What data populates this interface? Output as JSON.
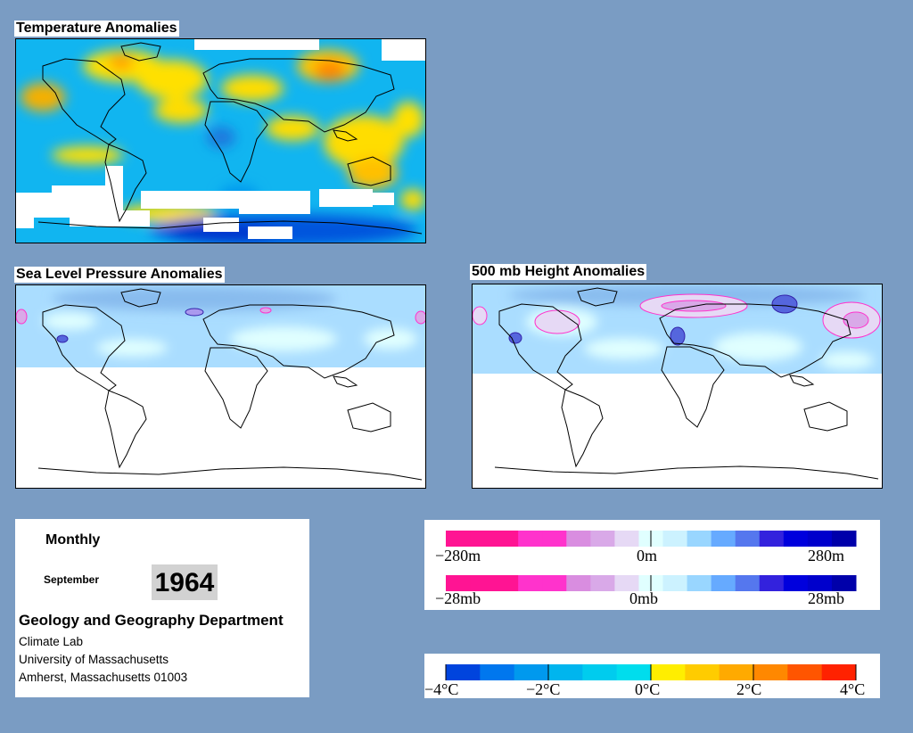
{
  "panels": {
    "temperature": {
      "title": "Temperature Anomalies"
    },
    "slp": {
      "title": "Sea Level Pressure Anomalies"
    },
    "height": {
      "title": "500 mb Height Anomalies"
    }
  },
  "info": {
    "period": "Monthly",
    "month": "September",
    "year": "1964",
    "department": "Geology and Geography Department",
    "address_lines": [
      "Climate Lab",
      "University of Massachusetts",
      "Amherst, Massachusetts 01003"
    ]
  },
  "legends": {
    "height": {
      "labels": [
        "−280m",
        "0m",
        "280m"
      ]
    },
    "pressure": {
      "labels": [
        "−28mb",
        "0mb",
        "28mb"
      ]
    },
    "temperature": {
      "labels": [
        "−4°C",
        "−2°C",
        "0°C",
        "2°C",
        "4°C"
      ]
    }
  },
  "colors": {
    "background": "#7a9cc3",
    "anomaly_scale_hp": [
      "#ff1493",
      "#ff1493",
      "#ff1493",
      "#ff33cc",
      "#ff33cc",
      "#d98de0",
      "#d9a9e8",
      "#e6d9f5",
      "#e0ffff",
      "#ccf2ff",
      "#99d6ff",
      "#66aaff",
      "#5577ee",
      "#3322dd",
      "#0000dd",
      "#0000cc",
      "#0000aa"
    ],
    "temperature_scale": [
      "#0044dd",
      "#0077ee",
      "#0099ee",
      "#00b5ee",
      "#00ccee",
      "#00dded",
      "#ffee00",
      "#ffcc00",
      "#ffaa00",
      "#ff8800",
      "#ff5500",
      "#ff2200"
    ]
  }
}
